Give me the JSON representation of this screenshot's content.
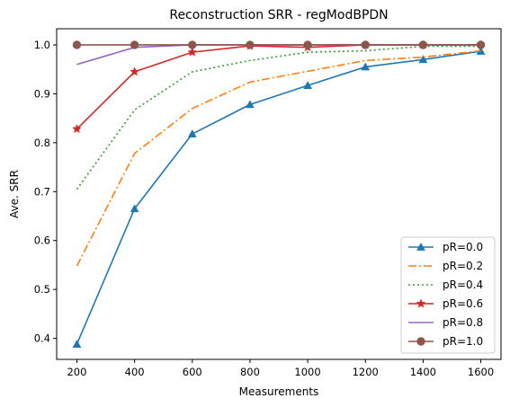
{
  "chart_data": {
    "type": "line",
    "title": "Reconstruction SRR - regModBPDN",
    "xlabel": "Measurements",
    "ylabel": "Ave. SRR",
    "x": [
      200,
      400,
      600,
      800,
      1000,
      1200,
      1400,
      1600
    ],
    "xticks": [
      "200",
      "400",
      "600",
      "800",
      "1000",
      "1200",
      "1400",
      "1600"
    ],
    "yticks": [
      "0.4",
      "0.5",
      "0.6",
      "0.7",
      "0.8",
      "0.9",
      "1.0"
    ],
    "xlim": [
      130,
      1670
    ],
    "ylim": [
      0.357,
      1.033
    ],
    "grid": false,
    "legend_position": "lower-right",
    "series": [
      {
        "name": "pR=0.0",
        "values": [
          0.388,
          0.665,
          0.818,
          0.878,
          0.917,
          0.955,
          0.97,
          0.987
        ],
        "color": "#1f77b4",
        "dash": "solid",
        "marker": "triangle"
      },
      {
        "name": "pR=0.2",
        "values": [
          0.548,
          0.778,
          0.87,
          0.924,
          0.946,
          0.968,
          0.975,
          0.988
        ],
        "color": "#ff7f0e",
        "dash": "dashdot",
        "marker": "none"
      },
      {
        "name": "pR=0.4",
        "values": [
          0.705,
          0.867,
          0.945,
          0.968,
          0.985,
          0.988,
          0.997,
          0.997
        ],
        "color": "#2ca02c",
        "dash": "dotted",
        "marker": "none"
      },
      {
        "name": "pR=0.6",
        "values": [
          0.828,
          0.945,
          0.985,
          0.998,
          0.995,
          1.0,
          1.0,
          1.0
        ],
        "color": "#d62728",
        "dash": "solid",
        "marker": "star"
      },
      {
        "name": "pR=0.8",
        "values": [
          0.96,
          0.995,
          1.0,
          1.0,
          1.0,
          1.0,
          1.0,
          1.0
        ],
        "color": "#9467bd",
        "dash": "solid",
        "marker": "none"
      },
      {
        "name": "pR=1.0",
        "values": [
          1.0,
          1.0,
          1.0,
          1.0,
          1.0,
          1.0,
          1.0,
          1.0
        ],
        "color": "#8c564b",
        "dash": "solid",
        "marker": "circle"
      }
    ]
  }
}
